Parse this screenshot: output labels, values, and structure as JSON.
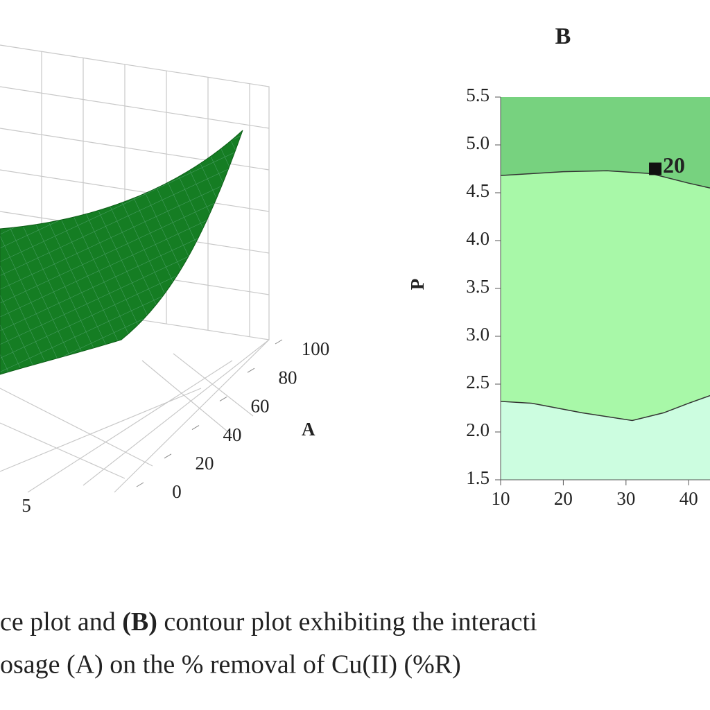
{
  "chart_data": [
    {
      "type": "surface",
      "xlabel": "A",
      "xticks": [
        0,
        20,
        40,
        60,
        80,
        100
      ],
      "xlim": [
        0,
        100
      ],
      "yticks": [
        5
      ],
      "color": "#157d23"
    },
    {
      "type": "contour",
      "title": "B",
      "ylabel": "P",
      "xlim": [
        10,
        43.4
      ],
      "xticks": [
        10,
        20,
        30,
        40
      ],
      "ylim": [
        1.5,
        5.5
      ],
      "yticks": [
        1.5,
        {
          "value": 2,
          "label": "2.0"
        },
        2.5,
        {
          "value": 3,
          "label": "3.0"
        },
        3.5,
        {
          "value": 4,
          "label": "4.0"
        },
        4.5,
        {
          "value": 5,
          "label": "5.0"
        },
        5.5
      ],
      "region_colors": [
        "#ccfde0",
        "#a8f8a8",
        "#77d27f"
      ],
      "contours": [
        {
          "label": "20",
          "label_x": 35,
          "label_y": 4.75,
          "x": [
            10,
            15,
            20,
            27,
            34,
            40,
            43.4
          ],
          "values": [
            4.68,
            4.7,
            4.72,
            4.73,
            4.7,
            4.6,
            4.55
          ]
        },
        {
          "x": [
            10,
            15,
            23,
            31,
            36,
            40,
            43.4
          ],
          "values": [
            2.32,
            2.3,
            2.2,
            2.12,
            2.2,
            2.3,
            2.38
          ]
        }
      ]
    }
  ],
  "caption": {
    "line1": [
      "ce plot and ",
      "(B)",
      " contour plot exhibiting the interacti"
    ],
    "line2": "osage (A) on the % removal  of Cu(II) (%R)"
  }
}
